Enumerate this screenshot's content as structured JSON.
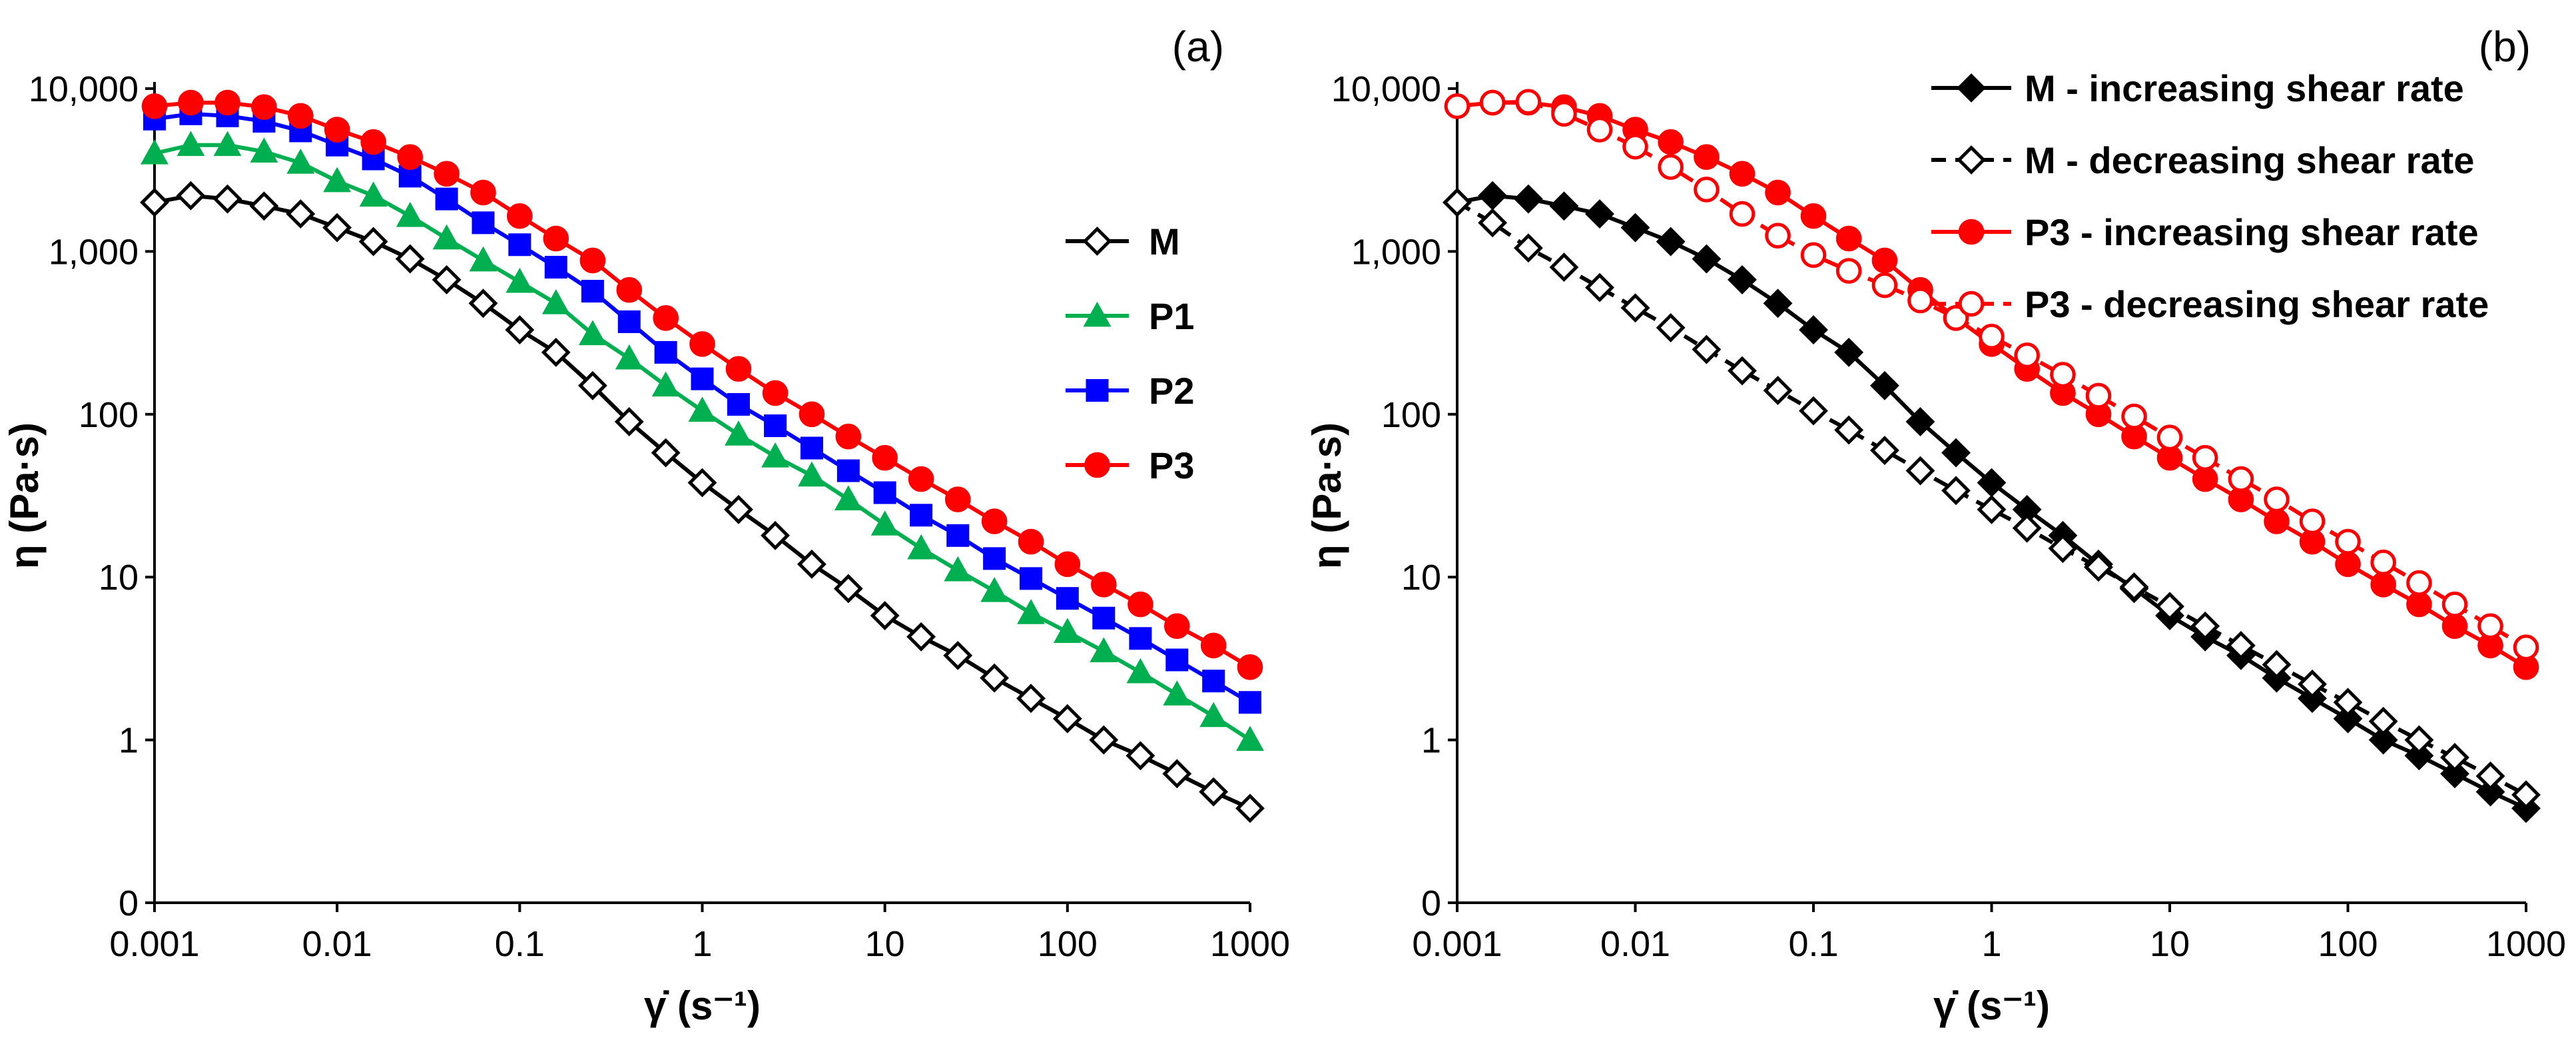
{
  "chart_data": [
    {
      "type": "line",
      "panel_label": "(a)",
      "xlabel": "γ̇ (s⁻¹)",
      "ylabel": "η (Pa·s)",
      "xscale": "log",
      "yscale": "log",
      "xlim": [
        0.001,
        1000
      ],
      "ylim": [
        0.1,
        10000
      ],
      "x_ticks": [
        0.001,
        0.01,
        0.1,
        1,
        10,
        100,
        1000
      ],
      "x_tick_labels": [
        "0.001",
        "0.01",
        "0.1",
        "1",
        "10",
        "100",
        "1000"
      ],
      "y_ticks": [
        0.1,
        1,
        10,
        100,
        1000,
        10000
      ],
      "y_tick_labels": [
        "0",
        "1",
        "10",
        "100",
        "1,000",
        "10,000"
      ],
      "legend_position": "center-right",
      "x": [
        0.001,
        0.00158,
        0.00251,
        0.00398,
        0.00631,
        0.01,
        0.0158,
        0.0251,
        0.0398,
        0.0631,
        0.1,
        0.158,
        0.251,
        0.398,
        0.631,
        1,
        1.58,
        2.51,
        3.98,
        6.31,
        10,
        15.8,
        25.1,
        39.8,
        63.1,
        100,
        158,
        251,
        398,
        631,
        1000
      ],
      "series": [
        {
          "name": "M",
          "color": "#000000",
          "marker": "diamond-open",
          "values": [
            2000,
            2200,
            2100,
            1900,
            1700,
            1400,
            1150,
            900,
            670,
            480,
            330,
            240,
            150,
            90,
            58,
            38,
            26,
            18,
            12,
            8.5,
            5.8,
            4.3,
            3.3,
            2.4,
            1.8,
            1.35,
            1.0,
            0.8,
            0.62,
            0.48,
            0.38
          ]
        },
        {
          "name": "P1",
          "color": "#00B050",
          "marker": "triangle",
          "values": [
            4000,
            4500,
            4500,
            4100,
            3500,
            2700,
            2200,
            1650,
            1200,
            880,
            650,
            480,
            310,
            220,
            150,
            105,
            75,
            55,
            42,
            30,
            21,
            15,
            11,
            8.2,
            6.0,
            4.6,
            3.5,
            2.6,
            1.9,
            1.4,
            1.0
          ]
        },
        {
          "name": "P2",
          "color": "#0000FF",
          "marker": "square",
          "values": [
            6500,
            7000,
            6800,
            6300,
            5500,
            4500,
            3700,
            2900,
            2100,
            1500,
            1100,
            800,
            570,
            370,
            240,
            165,
            115,
            85,
            62,
            45,
            33,
            24,
            18,
            13,
            9.8,
            7.4,
            5.6,
            4.2,
            3.1,
            2.3,
            1.7
          ]
        },
        {
          "name": "P3",
          "color": "#FF0000",
          "marker": "circle",
          "values": [
            7800,
            8200,
            8200,
            7700,
            6800,
            5600,
            4700,
            3800,
            3000,
            2300,
            1650,
            1200,
            880,
            580,
            390,
            270,
            190,
            135,
            100,
            73,
            54,
            40,
            30,
            22,
            16.5,
            12,
            9,
            6.8,
            5.0,
            3.8,
            2.8
          ]
        }
      ]
    },
    {
      "type": "line",
      "panel_label": "(b)",
      "xlabel": "γ̇ (s⁻¹)",
      "ylabel": "η (Pa·s)",
      "xscale": "log",
      "yscale": "log",
      "xlim": [
        0.001,
        1000
      ],
      "ylim": [
        0.1,
        10000
      ],
      "x_ticks": [
        0.001,
        0.01,
        0.1,
        1,
        10,
        100,
        1000
      ],
      "x_tick_labels": [
        "0.001",
        "0.01",
        "0.1",
        "1",
        "10",
        "100",
        "1000"
      ],
      "y_ticks": [
        0.1,
        1,
        10,
        100,
        1000,
        10000
      ],
      "y_tick_labels": [
        "0",
        "1",
        "10",
        "100",
        "1,000",
        "10,000"
      ],
      "legend_position": "top-right",
      "x": [
        0.001,
        0.00158,
        0.00251,
        0.00398,
        0.00631,
        0.01,
        0.0158,
        0.0251,
        0.0398,
        0.0631,
        0.1,
        0.158,
        0.251,
        0.398,
        0.631,
        1,
        1.58,
        2.51,
        3.98,
        6.31,
        10,
        15.8,
        25.1,
        39.8,
        63.1,
        100,
        158,
        251,
        398,
        631,
        1000
      ],
      "series": [
        {
          "name": "M - increasing shear rate",
          "color": "#000000",
          "marker": "diamond",
          "line": "solid",
          "values": [
            2000,
            2200,
            2100,
            1900,
            1700,
            1400,
            1150,
            900,
            670,
            480,
            330,
            240,
            150,
            90,
            58,
            38,
            26,
            18,
            12,
            8.5,
            5.8,
            4.3,
            3.3,
            2.4,
            1.8,
            1.35,
            1.0,
            0.8,
            0.62,
            0.48,
            0.38
          ]
        },
        {
          "name": "M - decreasing shear rate",
          "color": "#000000",
          "marker": "diamond-open",
          "line": "dashed",
          "values": [
            2000,
            1500,
            1050,
            800,
            600,
            450,
            340,
            250,
            185,
            140,
            105,
            80,
            60,
            45,
            34,
            26,
            20,
            15,
            11.5,
            8.7,
            6.6,
            5.0,
            3.8,
            2.9,
            2.2,
            1.7,
            1.3,
            1.0,
            0.78,
            0.6,
            0.46
          ]
        },
        {
          "name": "P3 - increasing shear rate",
          "color": "#FF0000",
          "marker": "circle",
          "line": "solid",
          "values": [
            7800,
            8200,
            8200,
            7700,
            6800,
            5600,
            4700,
            3800,
            3000,
            2300,
            1650,
            1200,
            880,
            580,
            390,
            270,
            190,
            135,
            100,
            73,
            54,
            40,
            30,
            22,
            16.5,
            12,
            9,
            6.8,
            5.0,
            3.8,
            2.8
          ]
        },
        {
          "name": "P3 - decreasing shear rate",
          "color": "#FF0000",
          "marker": "circle-open",
          "line": "dashed",
          "values": [
            7800,
            8200,
            8300,
            7000,
            5600,
            4400,
            3300,
            2400,
            1700,
            1250,
            950,
            760,
            620,
            500,
            390,
            300,
            230,
            175,
            130,
            97,
            72,
            54,
            40,
            30,
            22,
            16.5,
            12.3,
            9.2,
            6.8,
            5.0,
            3.7
          ]
        }
      ]
    }
  ]
}
